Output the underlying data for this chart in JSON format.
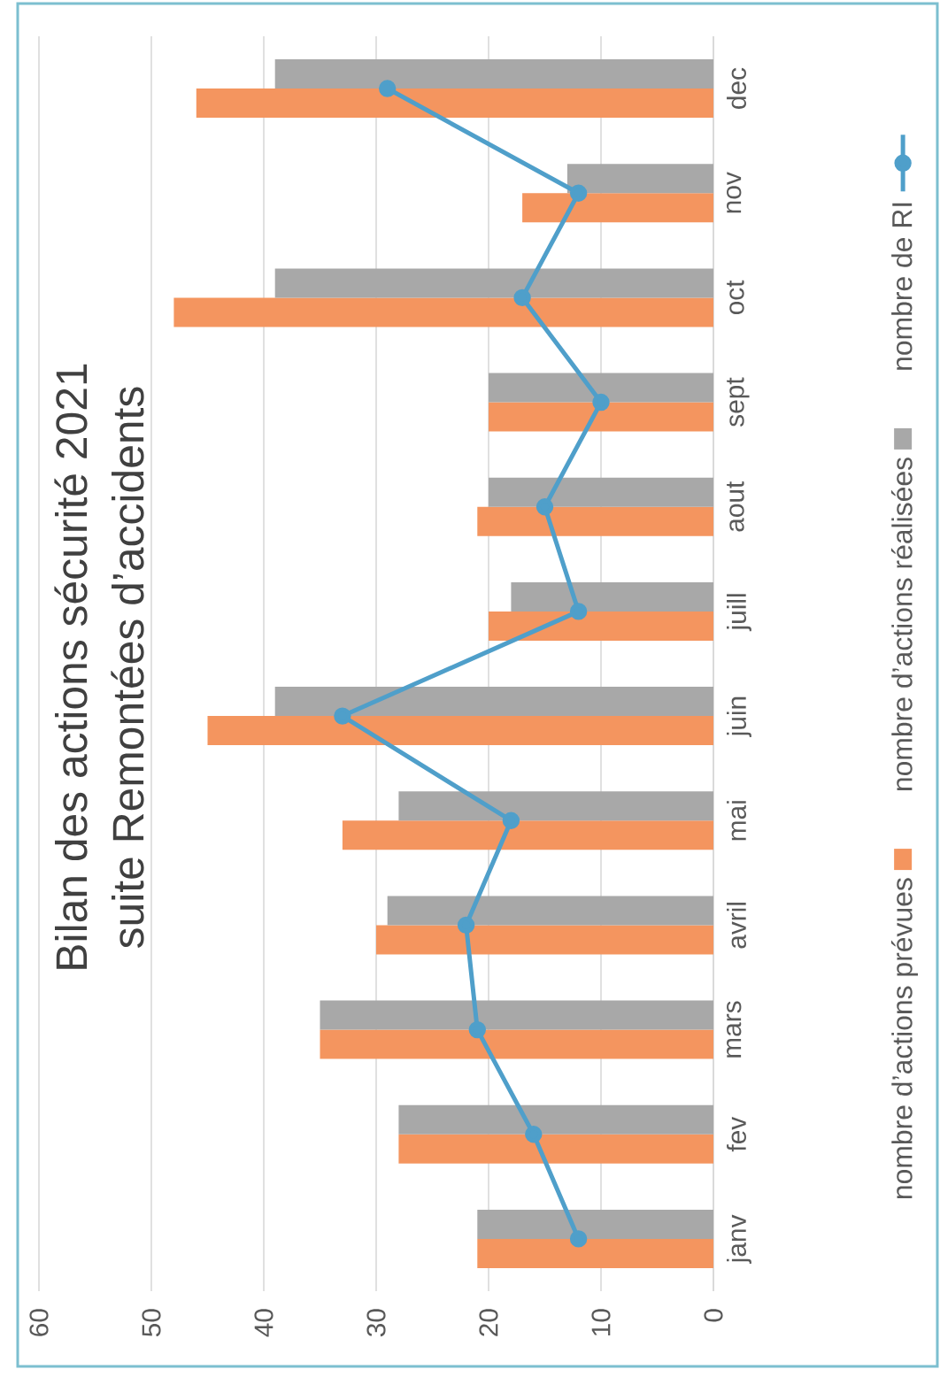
{
  "chart_data": {
    "type": "bar",
    "orientation": "horizontal",
    "title": "Bilan des actions sécurité 2021",
    "subtitle": "suite Remontées d’accidents",
    "categories": [
      "dec",
      "nov",
      "oct",
      "sept",
      "aout",
      "juill",
      "juin",
      "mai",
      "avril",
      "mars",
      "fev",
      "janv"
    ],
    "series": [
      {
        "name": "nombre d’actions prévues",
        "color": "#f4955f",
        "values": [
          46,
          17,
          48,
          20,
          21,
          20,
          45,
          33,
          30,
          35,
          28,
          21
        ]
      },
      {
        "name": "nombre d’actions réalisées",
        "color": "#a8a8a8",
        "values": [
          39,
          13,
          39,
          20,
          20,
          18,
          39,
          28,
          29,
          35,
          28,
          21
        ]
      },
      {
        "name": "nombre de RI",
        "type": "line",
        "color": "#4f9fca",
        "marker": "circle",
        "values": [
          29,
          12,
          17,
          10,
          15,
          12,
          33,
          18,
          22,
          21,
          16,
          12
        ]
      }
    ],
    "xlim": [
      60,
      0
    ],
    "xticks": [
      60,
      50,
      40,
      30,
      20,
      10,
      0
    ],
    "grid": "x",
    "legend": "right"
  }
}
